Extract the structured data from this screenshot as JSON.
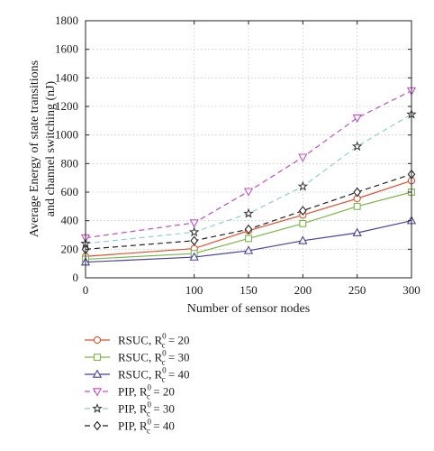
{
  "chart_data": {
    "type": "line",
    "xlabel": "Number of sensor nodes",
    "ylabel_lines": [
      "Average Energy of state transitions",
      "and channel switching (nJ)"
    ],
    "x": [
      0,
      100,
      150,
      200,
      250,
      300
    ],
    "xlim": [
      0,
      300
    ],
    "ylim": [
      0,
      1800
    ],
    "xticks": [
      0,
      100,
      150,
      200,
      250,
      300
    ],
    "yticks": [
      0,
      200,
      400,
      600,
      800,
      1000,
      1200,
      1400,
      1600,
      1800
    ],
    "grid": true,
    "legend_position": "below",
    "series": [
      {
        "name": "RSUC, R",
        "sup": "0",
        "sub": "c",
        "tail": " = 20",
        "color": "#e0502f",
        "dash": "solid",
        "marker": "circle",
        "values": [
          150,
          205,
          330,
          440,
          555,
          680
        ]
      },
      {
        "name": "RSUC, R",
        "sup": "0",
        "sub": "c",
        "tail": " = 30",
        "color": "#7ab648",
        "dash": "solid",
        "marker": "square",
        "values": [
          130,
          170,
          275,
          380,
          500,
          600
        ]
      },
      {
        "name": "RSUC, R",
        "sup": "0",
        "sub": "c",
        "tail": " = 40",
        "color": "#4b3f9e",
        "dash": "solid",
        "marker": "triangle-up",
        "values": [
          110,
          145,
          190,
          260,
          315,
          400
        ]
      },
      {
        "name": "PIP, R",
        "sup": "0",
        "sub": "c",
        "tail": " = 20",
        "color": "#c34fc3",
        "dash": "dashed",
        "marker": "triangle-down",
        "values": [
          280,
          385,
          605,
          845,
          1120,
          1310
        ]
      },
      {
        "name": "PIP, R",
        "sup": "0",
        "sub": "c",
        "tail": " = 30",
        "color": "#8fcfcf",
        "dash": "dashed",
        "marker": "star",
        "values": [
          240,
          320,
          450,
          640,
          920,
          1145
        ]
      },
      {
        "name": "PIP, R",
        "sup": "0",
        "sub": "c",
        "tail": " = 40",
        "color": "#222222",
        "dash": "dashed",
        "marker": "diamond",
        "values": [
          200,
          260,
          340,
          470,
          600,
          725
        ]
      }
    ]
  }
}
